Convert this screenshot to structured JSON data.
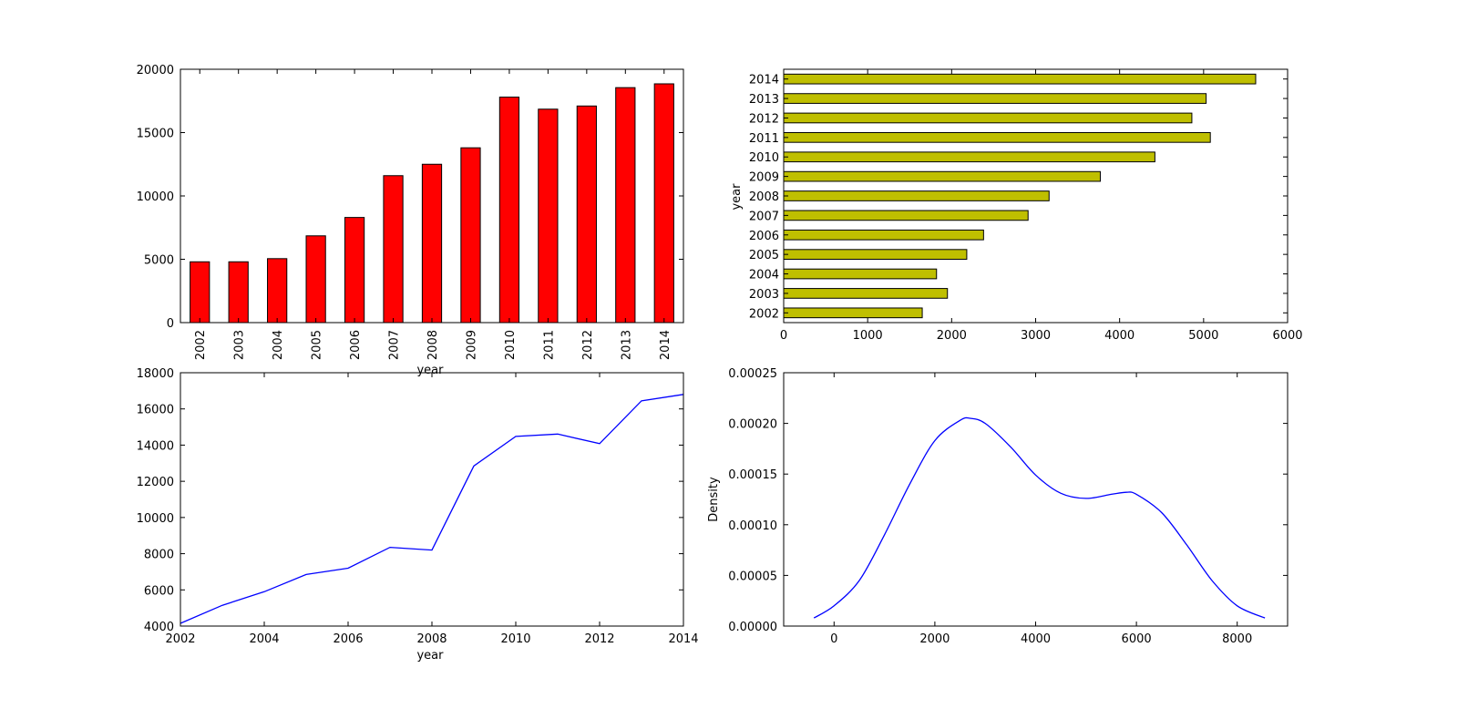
{
  "chart_data": [
    {
      "type": "bar",
      "orientation": "vertical",
      "categories": [
        "2002",
        "2003",
        "2004",
        "2005",
        "2006",
        "2007",
        "2008",
        "2009",
        "2010",
        "2011",
        "2012",
        "2013",
        "2014"
      ],
      "values": [
        4800,
        4800,
        5050,
        6850,
        8300,
        11600,
        12500,
        13800,
        17800,
        16850,
        17100,
        18550,
        18850
      ],
      "xlabel": "year",
      "ylabel": "",
      "ylim": [
        0,
        20000
      ],
      "yticks": [
        "0",
        "5000",
        "10000",
        "15000",
        "20000"
      ],
      "bar_color": "#ff0000",
      "grid": false
    },
    {
      "type": "bar",
      "orientation": "horizontal",
      "categories": [
        "2002",
        "2003",
        "2004",
        "2005",
        "2006",
        "2007",
        "2008",
        "2009",
        "2010",
        "2011",
        "2012",
        "2013",
        "2014"
      ],
      "values": [
        1650,
        1950,
        1820,
        2180,
        2380,
        2910,
        3160,
        3770,
        4420,
        5080,
        4860,
        5030,
        5620
      ],
      "xlabel": "",
      "ylabel": "year",
      "xlim": [
        0,
        6000
      ],
      "xticks": [
        "0",
        "1000",
        "2000",
        "3000",
        "4000",
        "5000",
        "6000"
      ],
      "bar_color": "#bfbf00",
      "grid": false
    },
    {
      "type": "line",
      "x": [
        2002,
        2003,
        2004,
        2005,
        2006,
        2007,
        2008,
        2009,
        2010,
        2011,
        2012,
        2013,
        2014
      ],
      "y": [
        4150,
        5150,
        5900,
        6850,
        7200,
        8350,
        8200,
        12850,
        14480,
        14610,
        14080,
        16450,
        16800
      ],
      "xlabel": "year",
      "ylabel": "",
      "xlim": [
        2002,
        2014
      ],
      "ylim": [
        4000,
        18000
      ],
      "xticks": [
        "2002",
        "2004",
        "2006",
        "2008",
        "2010",
        "2012",
        "2014"
      ],
      "yticks": [
        "4000",
        "6000",
        "8000",
        "10000",
        "12000",
        "14000",
        "16000",
        "18000"
      ],
      "line_color": "#0000ff",
      "grid": false
    },
    {
      "type": "line",
      "kind": "density",
      "x": [
        -400,
        0,
        500,
        1000,
        1500,
        2000,
        2500,
        2700,
        3000,
        3500,
        4000,
        4500,
        5000,
        5500,
        5800,
        6000,
        6500,
        7000,
        7500,
        8000,
        8550
      ],
      "y": [
        8e-06,
        2e-05,
        4.5e-05,
        9e-05,
        0.00014,
        0.000183,
        0.000203,
        0.000205,
        0.0002,
        0.000177,
        0.000149,
        0.000131,
        0.000126,
        0.00013,
        0.000132,
        0.00013,
        0.000112,
        8e-05,
        4.5e-05,
        2e-05,
        8e-06
      ],
      "xlabel": "",
      "ylabel": "Density",
      "xlim": [
        -1000,
        9000
      ],
      "ylim": [
        0,
        0.00025
      ],
      "xticks": [
        "0",
        "2000",
        "4000",
        "6000",
        "8000"
      ],
      "yticks": [
        "0.00000",
        "0.00005",
        "0.00010",
        "0.00015",
        "0.00020",
        "0.00025"
      ],
      "line_color": "#0000ff",
      "grid": false
    }
  ]
}
